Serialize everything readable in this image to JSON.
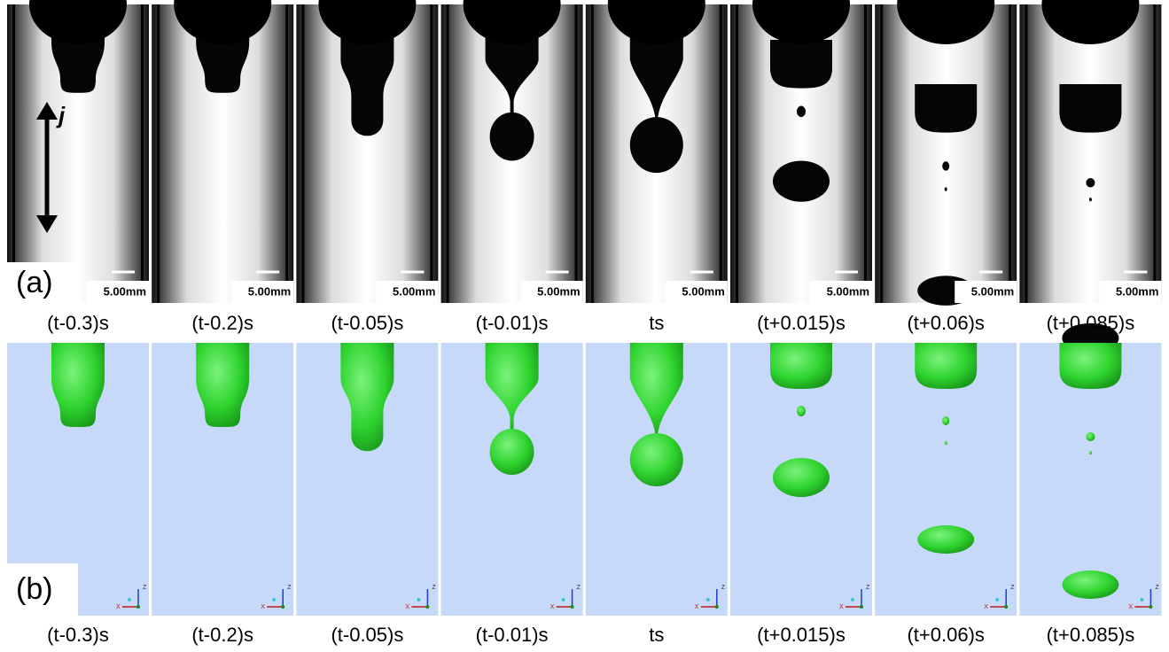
{
  "panel_a": {
    "label": "(a)",
    "axis_label": "j",
    "scale_bars": [
      "5.00mm",
      "5.00mm",
      "5.00mm",
      "5.00mm",
      "5.00mm",
      "5.00mm",
      "5.00mm",
      "5.00mm"
    ],
    "times": [
      "(t-0.3)s",
      "(t-0.2)s",
      "(t-0.05)s",
      "(t-0.01)s",
      "ts",
      "(t+0.015)s",
      "(t+0.06)s",
      "(t+0.085)s"
    ]
  },
  "panel_b": {
    "label": "(b)",
    "axis_triad": [
      "Z",
      "X"
    ],
    "times": [
      "(t-0.3)s",
      "(t-0.2)s",
      "(t-0.05)s",
      "(t-0.01)s",
      "ts",
      "(t+0.015)s",
      "(t+0.06)s",
      "(t+0.085)s"
    ]
  }
}
